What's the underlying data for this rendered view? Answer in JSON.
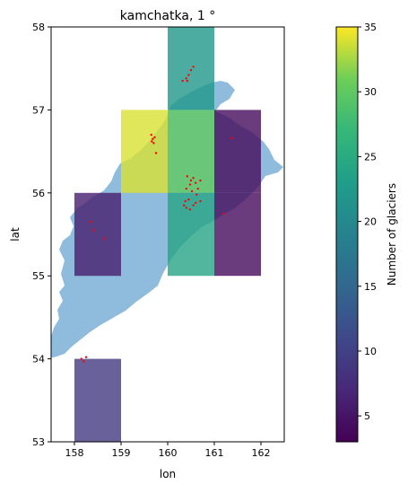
{
  "chart_data": {
    "type": "heatmap",
    "title": "kamchatka, 1 °",
    "xlabel": "lon",
    "ylabel": "lat",
    "xlim": [
      157.5,
      162.5
    ],
    "ylim": [
      53,
      58
    ],
    "xticks": [
      158,
      159,
      160,
      161,
      162
    ],
    "yticks": [
      53,
      54,
      55,
      56,
      57,
      58
    ],
    "cells": [
      {
        "lon": [
          160,
          161
        ],
        "lat": [
          57,
          58
        ],
        "value": 22
      },
      {
        "lon": [
          159,
          160
        ],
        "lat": [
          56,
          57
        ],
        "value": 34
      },
      {
        "lon": [
          160,
          161
        ],
        "lat": [
          56,
          57
        ],
        "value": 30
      },
      {
        "lon": [
          161,
          162
        ],
        "lat": [
          56,
          57
        ],
        "value": 4
      },
      {
        "lon": [
          158,
          159
        ],
        "lat": [
          55,
          56
        ],
        "value": 6
      },
      {
        "lon": [
          160,
          161
        ],
        "lat": [
          55,
          56
        ],
        "value": 24
      },
      {
        "lon": [
          161,
          162
        ],
        "lat": [
          55,
          56
        ],
        "value": 4
      },
      {
        "lon": [
          158,
          159
        ],
        "lat": [
          53,
          54
        ],
        "value": 9
      }
    ],
    "glacier_points": [
      [
        160.55,
        57.52
      ],
      [
        160.5,
        57.48
      ],
      [
        160.45,
        57.42
      ],
      [
        160.4,
        57.38
      ],
      [
        160.32,
        57.35
      ],
      [
        160.42,
        57.35
      ],
      [
        159.65,
        56.7
      ],
      [
        159.68,
        56.65
      ],
      [
        159.66,
        56.62
      ],
      [
        159.7,
        56.6
      ],
      [
        159.72,
        56.67
      ],
      [
        159.75,
        56.48
      ],
      [
        161.38,
        56.66
      ],
      [
        160.42,
        56.2
      ],
      [
        160.5,
        56.15
      ],
      [
        160.55,
        56.18
      ],
      [
        160.48,
        56.1
      ],
      [
        160.6,
        56.12
      ],
      [
        160.65,
        56.05
      ],
      [
        160.4,
        56.05
      ],
      [
        160.7,
        56.15
      ],
      [
        160.52,
        56.02
      ],
      [
        160.62,
        55.98
      ],
      [
        160.45,
        55.92
      ],
      [
        160.35,
        55.85
      ],
      [
        160.4,
        55.82
      ],
      [
        160.38,
        55.9
      ],
      [
        160.55,
        55.85
      ],
      [
        160.6,
        55.88
      ],
      [
        160.7,
        55.9
      ],
      [
        160.48,
        55.8
      ],
      [
        161.2,
        55.75
      ],
      [
        158.35,
        55.65
      ],
      [
        158.42,
        55.55
      ],
      [
        158.65,
        55.45
      ],
      [
        158.15,
        54.0
      ],
      [
        158.2,
        53.97
      ],
      [
        158.25,
        54.02
      ]
    ],
    "colorbar": {
      "label": "Number of glaciers",
      "min": 3,
      "max": 35,
      "ticks": [
        5,
        10,
        15,
        20,
        25,
        30,
        35
      ],
      "colormap": "viridis"
    },
    "colors": {
      "land": "#8fbcdc",
      "glacier_point": "#ff0000"
    }
  }
}
